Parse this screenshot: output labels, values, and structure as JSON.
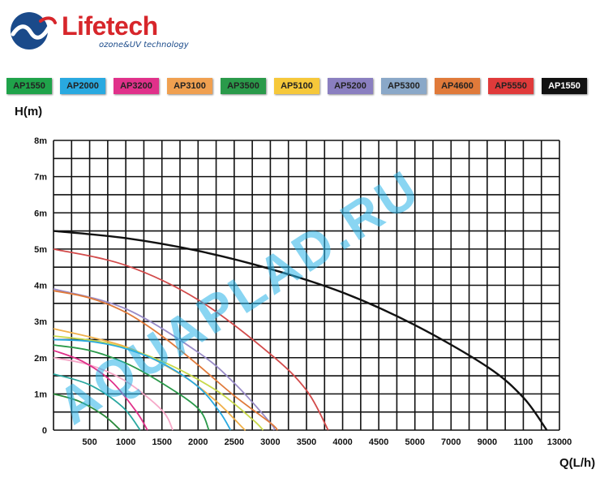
{
  "brand": {
    "name": "Lifetech",
    "tagline": "ozone&UV technology",
    "colors": {
      "name": "#d7262b",
      "mark": "#1a4a8a"
    },
    "icon": "wave-logo-icon"
  },
  "watermark": {
    "text": "AQUAPLAD.RU",
    "color": "#29b4e8"
  },
  "legend": [
    {
      "label": "AP1550",
      "bg": "#1fa34a"
    },
    {
      "label": "AP2000",
      "bg": "#29a9e0"
    },
    {
      "label": "AP3200",
      "bg": "#e0318a"
    },
    {
      "label": "AP3100",
      "bg": "#f0a050"
    },
    {
      "label": "AP3500",
      "bg": "#2a9a4a"
    },
    {
      "label": "AP5100",
      "bg": "#f6c83a"
    },
    {
      "label": "AP5200",
      "bg": "#8a7fc0"
    },
    {
      "label": "AP5300",
      "bg": "#8aa8c8"
    },
    {
      "label": "AP4600",
      "bg": "#e07a3a"
    },
    {
      "label": "AP5550",
      "bg": "#e03a3a"
    },
    {
      "label": "AP1550",
      "bg": "#111111"
    }
  ],
  "chart_data": {
    "type": "line",
    "ylabel": "H(m)",
    "xlabel": "Q(L/h)",
    "y_ticks": [
      "0",
      "1m",
      "2m",
      "3m",
      "4m",
      "5m",
      "6m",
      "7m",
      "8m"
    ],
    "x_ticks": [
      "500",
      "1000",
      "1500",
      "2000",
      "2500",
      "3000",
      "3500",
      "4000",
      "4500",
      "5000",
      "7000",
      "9000",
      "1100",
      "13000"
    ],
    "x_range_index": [
      0,
      14
    ],
    "y_range": [
      0,
      8
    ],
    "grid": true,
    "series": [
      {
        "color": "#111111",
        "points": [
          [
            0,
            5.5
          ],
          [
            2,
            5.3
          ],
          [
            4,
            4.95
          ],
          [
            6,
            4.45
          ],
          [
            8,
            3.8
          ],
          [
            10,
            2.9
          ],
          [
            12,
            1.75
          ],
          [
            13,
            0.9
          ],
          [
            13.65,
            0
          ]
        ]
      },
      {
        "color": "#d24a4a",
        "points": [
          [
            0,
            5.0
          ],
          [
            2,
            4.55
          ],
          [
            4,
            3.6
          ],
          [
            6,
            2.1
          ],
          [
            7,
            1.1
          ],
          [
            7.6,
            0
          ]
        ]
      },
      {
        "color": "#9a8cc8",
        "points": [
          [
            0,
            3.9
          ],
          [
            2,
            3.35
          ],
          [
            4,
            2.15
          ],
          [
            5,
            1.3
          ],
          [
            6,
            0.2
          ],
          [
            6.1,
            0
          ]
        ]
      },
      {
        "color": "#e07a3a",
        "points": [
          [
            0,
            3.85
          ],
          [
            1,
            3.65
          ],
          [
            2,
            3.25
          ],
          [
            3,
            2.6
          ],
          [
            4,
            1.8
          ],
          [
            5,
            0.95
          ],
          [
            6,
            0.2
          ],
          [
            6.2,
            0
          ]
        ]
      },
      {
        "color": "#f0b04a",
        "points": [
          [
            0,
            2.8
          ],
          [
            2,
            2.3
          ],
          [
            3.5,
            1.55
          ],
          [
            4.5,
            0.8
          ],
          [
            5.2,
            0.1
          ],
          [
            5.3,
            0
          ]
        ]
      },
      {
        "color": "#c9d94a",
        "points": [
          [
            0,
            2.6
          ],
          [
            1.5,
            2.4
          ],
          [
            3,
            1.9
          ],
          [
            4.5,
            1.1
          ],
          [
            5.5,
            0.3
          ],
          [
            5.8,
            0
          ]
        ]
      },
      {
        "color": "#29a9e0",
        "points": [
          [
            0,
            2.5
          ],
          [
            1,
            2.45
          ],
          [
            2,
            2.25
          ],
          [
            3,
            1.85
          ],
          [
            4,
            1.2
          ],
          [
            4.6,
            0.5
          ],
          [
            4.9,
            0
          ]
        ]
      },
      {
        "color": "#2a9a4a",
        "points": [
          [
            0,
            2.35
          ],
          [
            1,
            2.2
          ],
          [
            2,
            1.85
          ],
          [
            3,
            1.3
          ],
          [
            4,
            0.6
          ],
          [
            4.3,
            0
          ]
        ]
      },
      {
        "color": "#f6a8c8",
        "points": [
          [
            0,
            2.0
          ],
          [
            1,
            1.8
          ],
          [
            2,
            1.35
          ],
          [
            3,
            0.55
          ],
          [
            3.3,
            0
          ]
        ]
      },
      {
        "color": "#e0318a",
        "points": [
          [
            0,
            2.2
          ],
          [
            0.8,
            1.9
          ],
          [
            1.6,
            1.35
          ],
          [
            2.3,
            0.5
          ],
          [
            2.6,
            0
          ]
        ]
      },
      {
        "color": "#2aa8a0",
        "points": [
          [
            0,
            1.55
          ],
          [
            1,
            1.25
          ],
          [
            1.9,
            0.65
          ],
          [
            2.4,
            0
          ]
        ]
      },
      {
        "color": "#2a8a3a",
        "points": [
          [
            0,
            1.0
          ],
          [
            0.7,
            0.8
          ],
          [
            1.4,
            0.4
          ],
          [
            1.85,
            0
          ]
        ]
      }
    ]
  }
}
